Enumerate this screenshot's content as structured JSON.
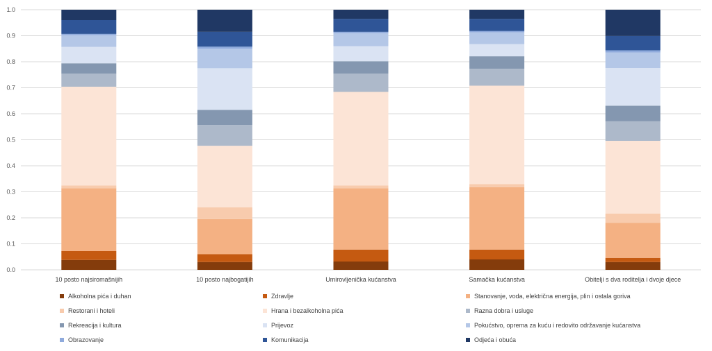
{
  "chart_data": {
    "type": "bar",
    "stacked": true,
    "title": "",
    "xlabel": "",
    "ylabel": "",
    "ylim": [
      0,
      1
    ],
    "yticks": [
      "0.0",
      "0.1",
      "0.2",
      "0.3",
      "0.4",
      "0.5",
      "0.6",
      "0.7",
      "0.8",
      "0.9",
      "1.0"
    ],
    "grid": true,
    "legend_position": "bottom",
    "categories": [
      "10 posto najsiromašnijih",
      "10 posto najbogatijih",
      "Umirovljenička kućanstva",
      "Samačka kućanstva",
      "Obitelji s dva roditelja i dvoje djece"
    ],
    "series": [
      {
        "name": "Alkoholna pića i duhan",
        "color": "#843c0c",
        "values": [
          0.038,
          0.03,
          0.032,
          0.04,
          0.03
        ]
      },
      {
        "name": "Zdravlje",
        "color": "#c55a11",
        "values": [
          0.034,
          0.03,
          0.046,
          0.038,
          0.016
        ]
      },
      {
        "name": "Stanovanje, voda, električna energija, plin i ostala goriva",
        "color": "#f4b183",
        "values": [
          0.242,
          0.135,
          0.236,
          0.24,
          0.135
        ]
      },
      {
        "name": "Restorani i hoteli",
        "color": "#f8cbad",
        "values": [
          0.01,
          0.045,
          0.01,
          0.012,
          0.035
        ]
      },
      {
        "name": "Hrana i bezalkoholna pića",
        "color": "#fce4d6",
        "values": [
          0.38,
          0.237,
          0.36,
          0.378,
          0.28
        ]
      },
      {
        "name": "Razna dobra i usluge",
        "color": "#adb9ca",
        "values": [
          0.05,
          0.08,
          0.07,
          0.065,
          0.075
        ]
      },
      {
        "name": "Rekreacija i kultura",
        "color": "#8497b0",
        "values": [
          0.04,
          0.058,
          0.048,
          0.048,
          0.06
        ]
      },
      {
        "name": "Prijevoz",
        "color": "#dae3f3",
        "values": [
          0.063,
          0.16,
          0.058,
          0.047,
          0.145
        ]
      },
      {
        "name": "Pokućstvo, oprema za kuću i redovito održavanje kućanstva",
        "color": "#b4c7e7",
        "values": [
          0.045,
          0.075,
          0.05,
          0.045,
          0.06
        ]
      },
      {
        "name": "Obrazovanje",
        "color": "#8faadc",
        "values": [
          0.005,
          0.008,
          0.005,
          0.005,
          0.008
        ]
      },
      {
        "name": "Komunikacija",
        "color": "#2f5597",
        "values": [
          0.053,
          0.057,
          0.05,
          0.047,
          0.055
        ]
      },
      {
        "name": "Odjeća i obuća",
        "color": "#203864",
        "values": [
          0.04,
          0.085,
          0.035,
          0.035,
          0.101
        ]
      }
    ]
  },
  "axis_color": "#d9d9d9",
  "label_color": "#595959"
}
